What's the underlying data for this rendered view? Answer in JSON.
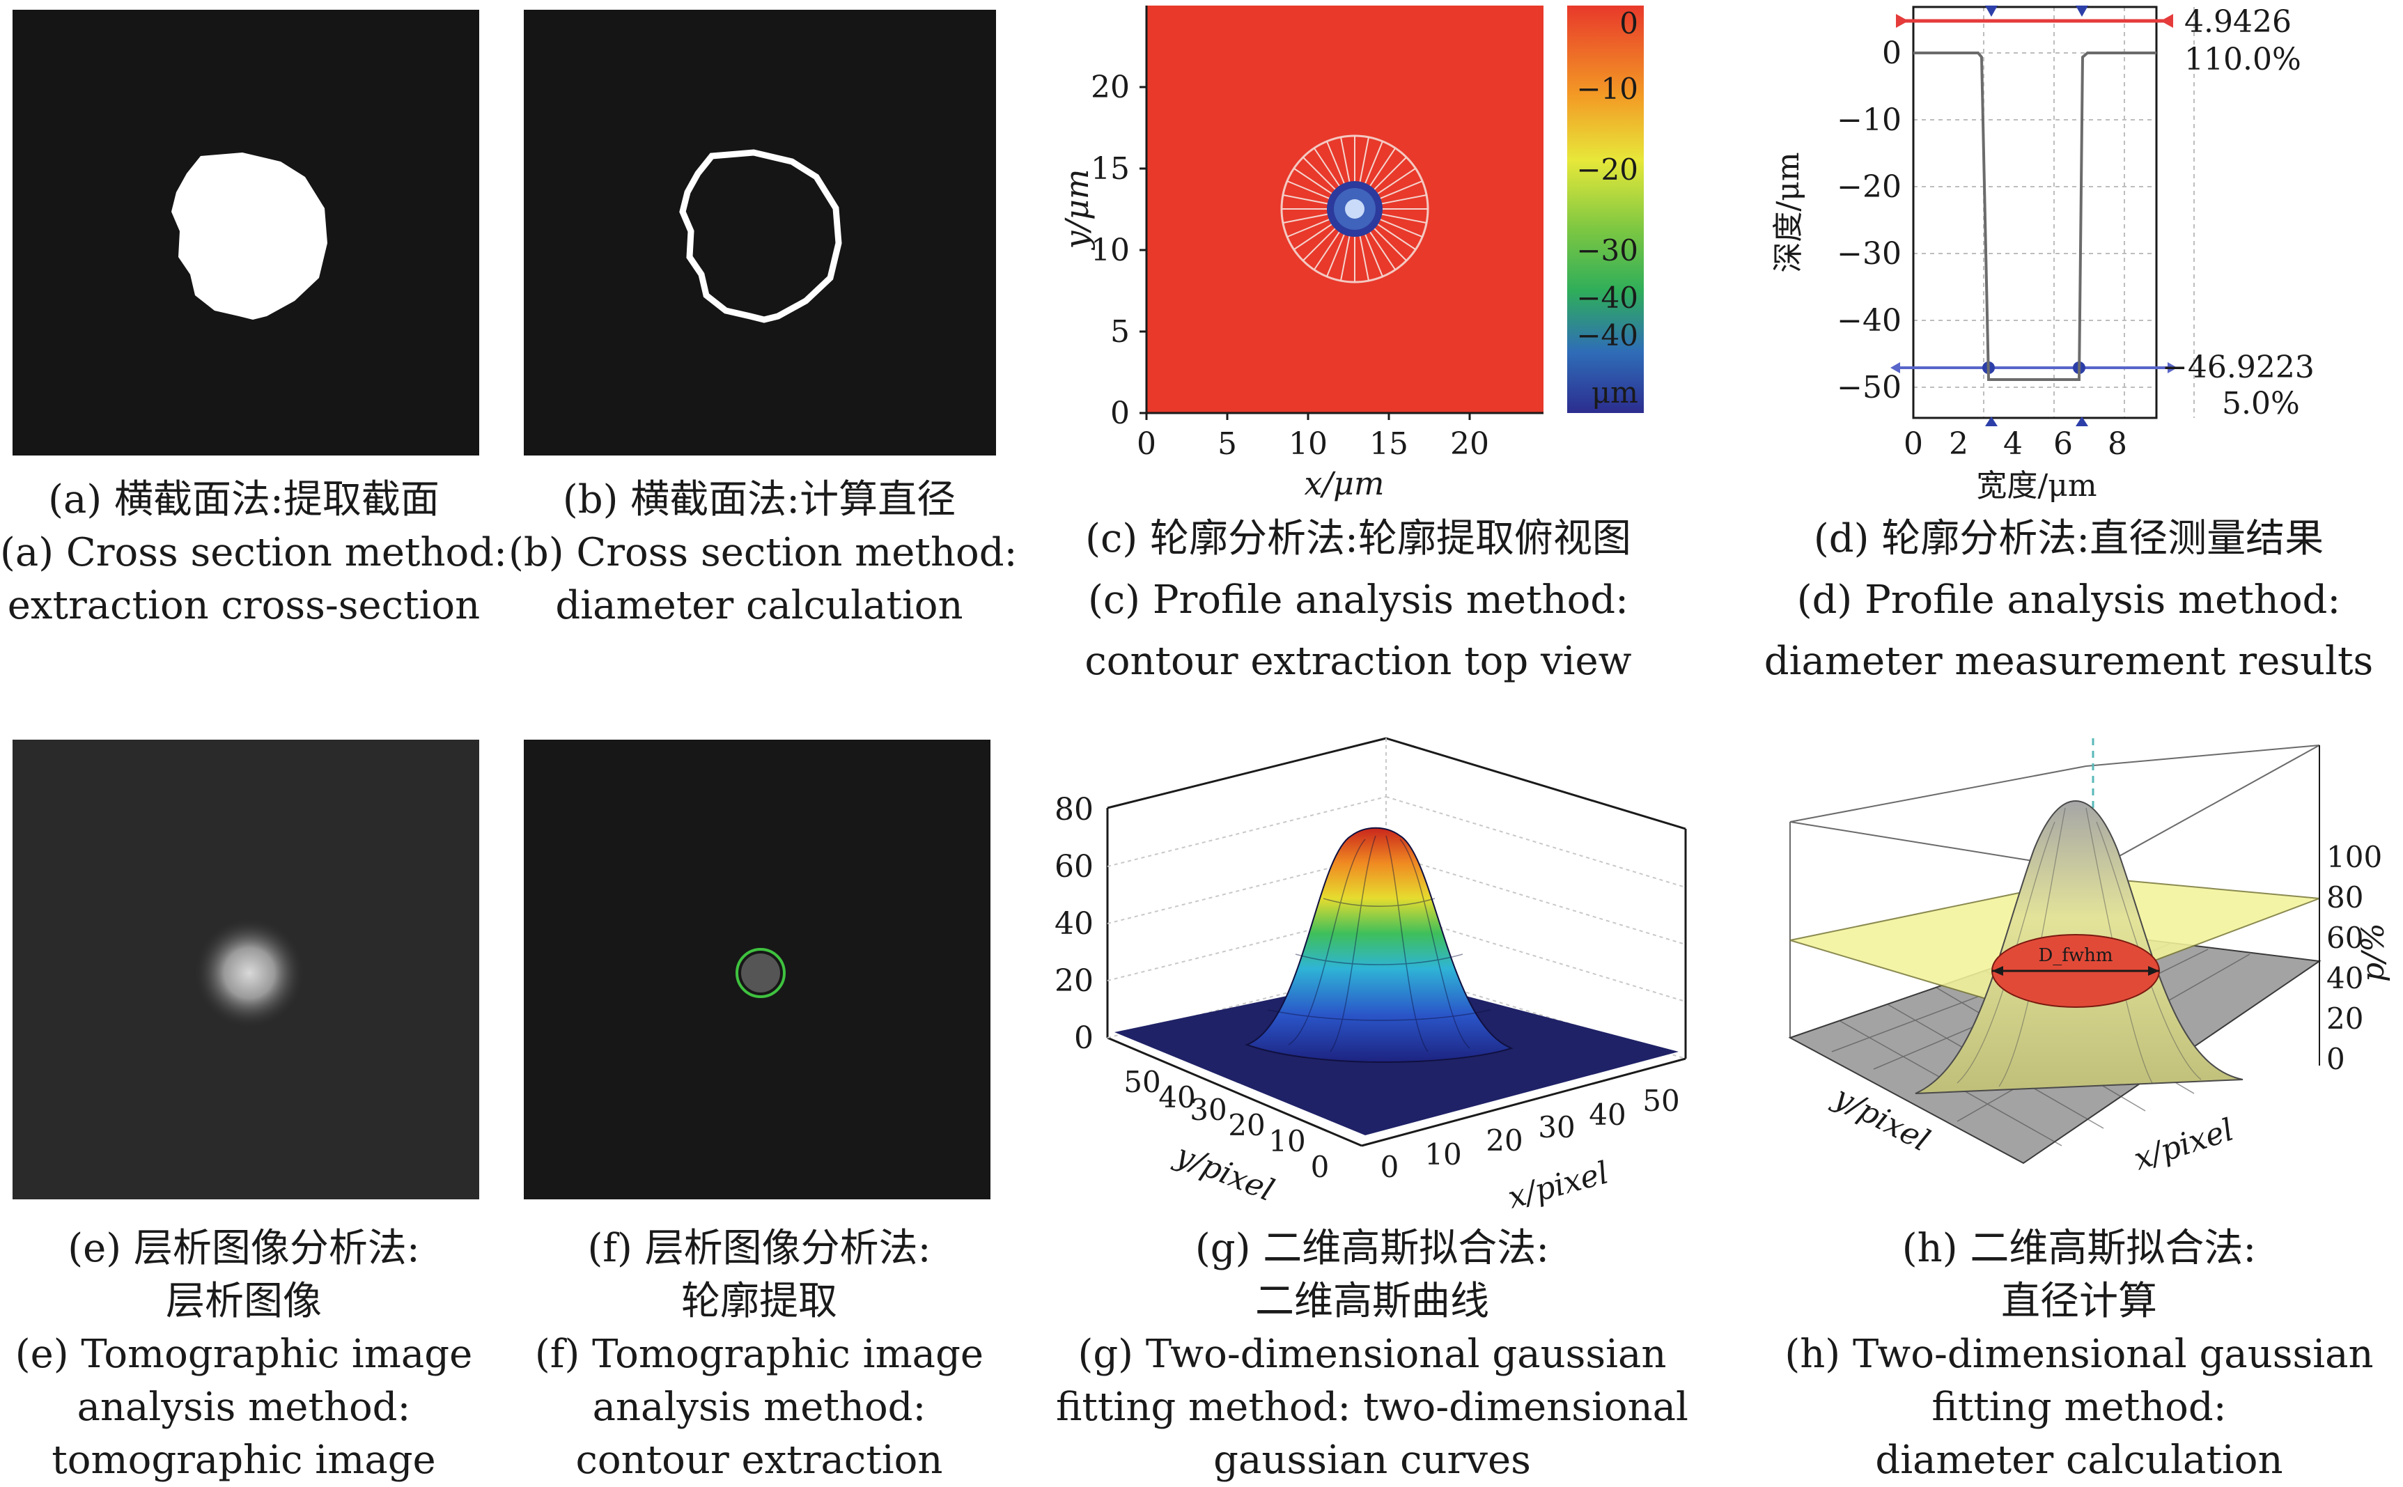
{
  "panels": {
    "a": {
      "caption_cn": "(a) 横截面法:提取截面",
      "caption_en1": "(a) Cross section method:",
      "caption_en2": "extraction cross-section"
    },
    "b": {
      "caption_cn": "(b) 横截面法:计算直径",
      "caption_en1": "(b) Cross section method:",
      "caption_en2": "diameter calculation"
    },
    "c": {
      "caption_cn": "(c) 轮廓分析法:轮廓提取俯视图",
      "caption_en1": "(c) Profile analysis method:",
      "caption_en2": "contour extraction top view",
      "xlabel": "x/μm",
      "ylabel": "y/μm",
      "xticks": [
        "0",
        "5",
        "10",
        "15",
        "20"
      ],
      "yticks": [
        "0",
        "5",
        "10",
        "15",
        "20"
      ],
      "colorbar_ticks": [
        "0",
        "−10",
        "−20",
        "−30",
        "−40",
        "−40"
      ],
      "colorbar_unit": "μm"
    },
    "d": {
      "caption_cn": "(d) 轮廓分析法:直径测量结果",
      "caption_en1": "(d) Profile analysis method:",
      "caption_en2": "diameter measurement results",
      "xlabel": "宽度/μm",
      "ylabel": "深度/μm",
      "xticks": [
        "0",
        "2",
        "4",
        "6",
        "8"
      ],
      "yticks": [
        "0",
        "−10",
        "−20",
        "−30",
        "−40",
        "−50"
      ],
      "top_value": "4.9426",
      "top_pct": "110.0%",
      "bottom_value": "−46.9223",
      "bottom_pct": "5.0%"
    },
    "e": {
      "caption_cn1": "(e) 层析图像分析法:",
      "caption_cn2": "层析图像",
      "caption_en1": "(e) Tomographic image",
      "caption_en2": "analysis method:",
      "caption_en3": "tomographic image"
    },
    "f": {
      "caption_cn1": "(f) 层析图像分析法:",
      "caption_cn2": "轮廓提取",
      "caption_en1": "(f) Tomographic image",
      "caption_en2": "analysis method:",
      "caption_en3": "contour extraction"
    },
    "g": {
      "caption_cn1": "(g) 二维高斯拟合法:",
      "caption_cn2": "二维高斯曲线",
      "caption_en1": "(g) Two-dimensional gaussian",
      "caption_en2": "fitting method: two-dimensional",
      "caption_en3": "gaussian curves",
      "zticks": [
        "0",
        "20",
        "40",
        "60",
        "80"
      ],
      "yticks": [
        "0",
        "10",
        "20",
        "30",
        "40",
        "50"
      ],
      "xticks": [
        "0",
        "10",
        "20",
        "30",
        "40",
        "50"
      ],
      "xlabel": "x/pixel",
      "ylabel": "y/pixel"
    },
    "h": {
      "caption_cn1": "(h) 二维高斯拟合法:",
      "caption_cn2": "直径计算",
      "caption_en1": "(h) Two-dimensional gaussian",
      "caption_en2": "fitting method:",
      "caption_en3": "diameter calculation",
      "zticks": [
        "0",
        "20",
        "40",
        "60",
        "80",
        "100"
      ],
      "zlabel": "p/%",
      "xlabel": "x/pixel",
      "ylabel": "y/pixel",
      "diam_label": "D_fwhm"
    }
  },
  "colors": {
    "red_field": "#e8392b",
    "plateau": "#f3f39a",
    "spot_blue": "#2c3fa8"
  }
}
